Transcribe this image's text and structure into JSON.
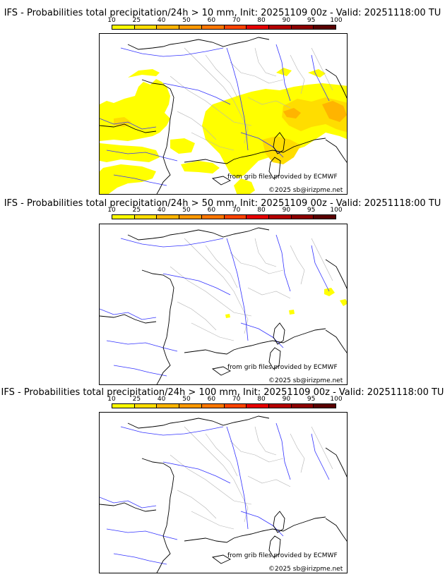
{
  "panels": [
    {
      "title": "IFS - Probabilities total precipitation/24h > 10 mm, Init: 20251109 00z - Valid: 20251118:00 TU",
      "credit_source": "from grib files provided by ECMWF",
      "credit_copyright": "©2025 sb@irizpme.net"
    },
    {
      "title": "IFS - Probabilities total precipitation/24h > 50 mm, Init: 20251109 00z - Valid: 20251118:00 TU",
      "credit_source": "from grib files provided by ECMWF",
      "credit_copyright": "©2025 sb@irizpme.net"
    },
    {
      "title": "IFS - Probabilities total precipitation/24h > 100 mm, Init: 20251109 00z - Valid: 20251118:00 TU",
      "credit_source": "from grib files provided by ECMWF",
      "credit_copyright": "©2025 sb@irizpme.net"
    }
  ],
  "colorbar": {
    "labels": [
      "10",
      "25",
      "40",
      "50",
      "60",
      "70",
      "80",
      "90",
      "95",
      "100"
    ],
    "colors": [
      "#ffff00",
      "#ffdd00",
      "#ffb400",
      "#ff9900",
      "#ff7700",
      "#ff4400",
      "#e60000",
      "#b40000",
      "#8c0000",
      "#5a0000"
    ]
  },
  "map_colors": {
    "precip_light": "#ffff00",
    "precip_mid": "#ffdd00",
    "precip_high": "#ffb400",
    "coast": "#000000",
    "rivers": "#3333ff",
    "borders": "#b4b4b4"
  }
}
